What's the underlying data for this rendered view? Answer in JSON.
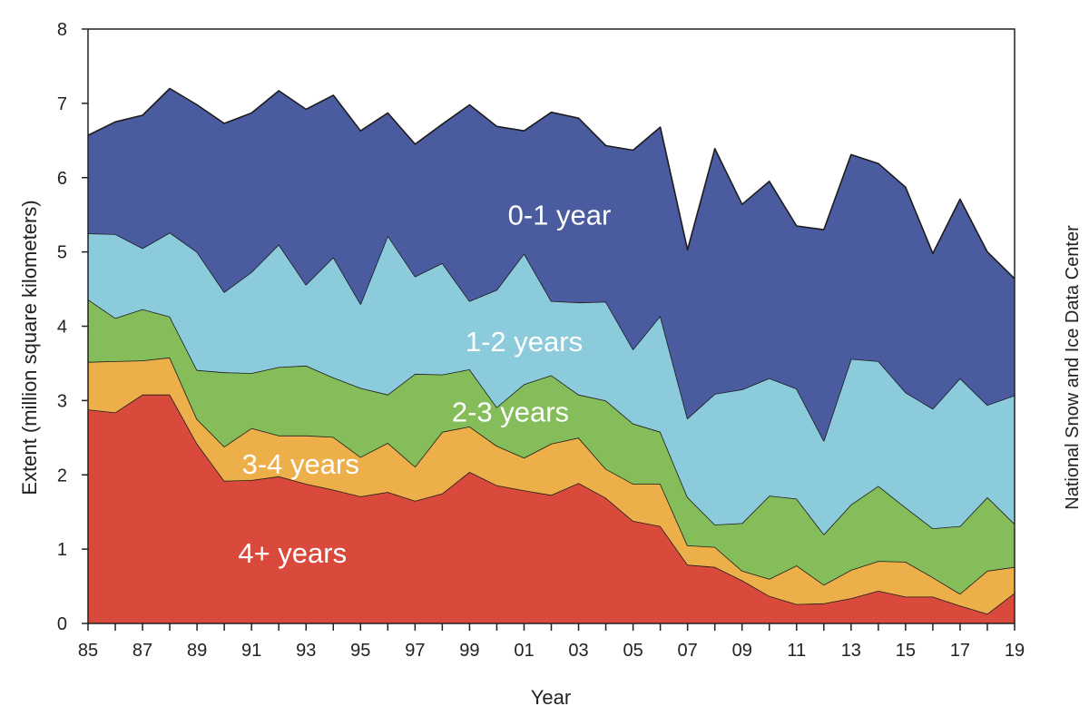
{
  "chart_data": {
    "type": "area",
    "stacked": true,
    "title": "",
    "xlabel": "Year",
    "ylabel": "Extent (million square kilometers)",
    "credit": "National Snow and Ice Data Center",
    "xlim": [
      1985,
      2019
    ],
    "ylim": [
      0,
      8
    ],
    "y_ticks": [
      "0",
      "1",
      "2",
      "3",
      "4",
      "5",
      "6",
      "7",
      "8"
    ],
    "x_tick_labels": [
      "85",
      "87",
      "89",
      "91",
      "93",
      "95",
      "97",
      "99",
      "01",
      "03",
      "05",
      "07",
      "09",
      "11",
      "13",
      "15",
      "17",
      "19"
    ],
    "grid": false,
    "x": [
      1985,
      1986,
      1987,
      1988,
      1989,
      1990,
      1991,
      1992,
      1993,
      1994,
      1995,
      1996,
      1997,
      1998,
      1999,
      2000,
      2001,
      2002,
      2003,
      2004,
      2005,
      2006,
      2007,
      2008,
      2009,
      2010,
      2011,
      2012,
      2013,
      2014,
      2015,
      2016,
      2017,
      2018,
      2019
    ],
    "series": [
      {
        "name": "4+ years",
        "label": "4+ years",
        "color": "#d94a3c",
        "values": [
          2.88,
          2.84,
          3.08,
          3.08,
          2.42,
          1.92,
          1.93,
          1.98,
          1.88,
          1.8,
          1.71,
          1.77,
          1.65,
          1.75,
          2.04,
          1.86,
          1.79,
          1.73,
          1.89,
          1.69,
          1.38,
          1.31,
          0.79,
          0.76,
          0.58,
          0.37,
          0.26,
          0.27,
          0.34,
          0.44,
          0.36,
          0.36,
          0.24,
          0.13,
          0.41
        ]
      },
      {
        "name": "3-4 years",
        "label": "3-4 years",
        "color": "#edaf4a",
        "values": [
          0.64,
          0.69,
          0.46,
          0.5,
          0.33,
          0.46,
          0.7,
          0.55,
          0.65,
          0.71,
          0.53,
          0.66,
          0.46,
          0.83,
          0.61,
          0.53,
          0.44,
          0.69,
          0.61,
          0.39,
          0.5,
          0.57,
          0.26,
          0.27,
          0.13,
          0.23,
          0.52,
          0.25,
          0.38,
          0.4,
          0.47,
          0.26,
          0.16,
          0.58,
          0.35
        ]
      },
      {
        "name": "2-3 years",
        "label": "2-3 years",
        "color": "#85bd5a",
        "values": [
          0.84,
          0.58,
          0.69,
          0.55,
          0.66,
          1.0,
          0.74,
          0.92,
          0.94,
          0.8,
          0.93,
          0.65,
          1.25,
          0.77,
          0.77,
          0.52,
          0.99,
          0.92,
          0.58,
          0.92,
          0.81,
          0.7,
          0.65,
          0.3,
          0.64,
          1.12,
          0.9,
          0.68,
          0.88,
          1.01,
          0.73,
          0.66,
          0.91,
          0.99,
          0.58
        ]
      },
      {
        "name": "1-2 years",
        "label": "1-2 years",
        "color": "#8ccbdb",
        "values": [
          0.89,
          1.13,
          0.82,
          1.13,
          1.59,
          1.08,
          1.36,
          1.65,
          1.09,
          1.62,
          1.13,
          2.14,
          1.31,
          1.5,
          0.92,
          1.58,
          1.76,
          1.0,
          1.24,
          1.33,
          1.0,
          1.56,
          1.06,
          1.76,
          1.8,
          1.58,
          1.48,
          1.26,
          1.96,
          1.68,
          1.55,
          1.61,
          1.99,
          1.24,
          1.73
        ]
      },
      {
        "name": "0-1 year",
        "label": "0-1 year",
        "color": "#4b5ba0",
        "values": [
          1.32,
          1.51,
          1.79,
          1.94,
          1.98,
          2.27,
          2.14,
          2.07,
          2.36,
          2.18,
          2.33,
          1.65,
          1.78,
          1.87,
          2.64,
          2.2,
          1.65,
          2.54,
          2.48,
          2.1,
          2.68,
          2.54,
          2.27,
          3.3,
          2.49,
          2.65,
          2.19,
          2.84,
          2.75,
          2.66,
          2.76,
          2.09,
          2.41,
          2.06,
          1.57
        ]
      }
    ]
  }
}
